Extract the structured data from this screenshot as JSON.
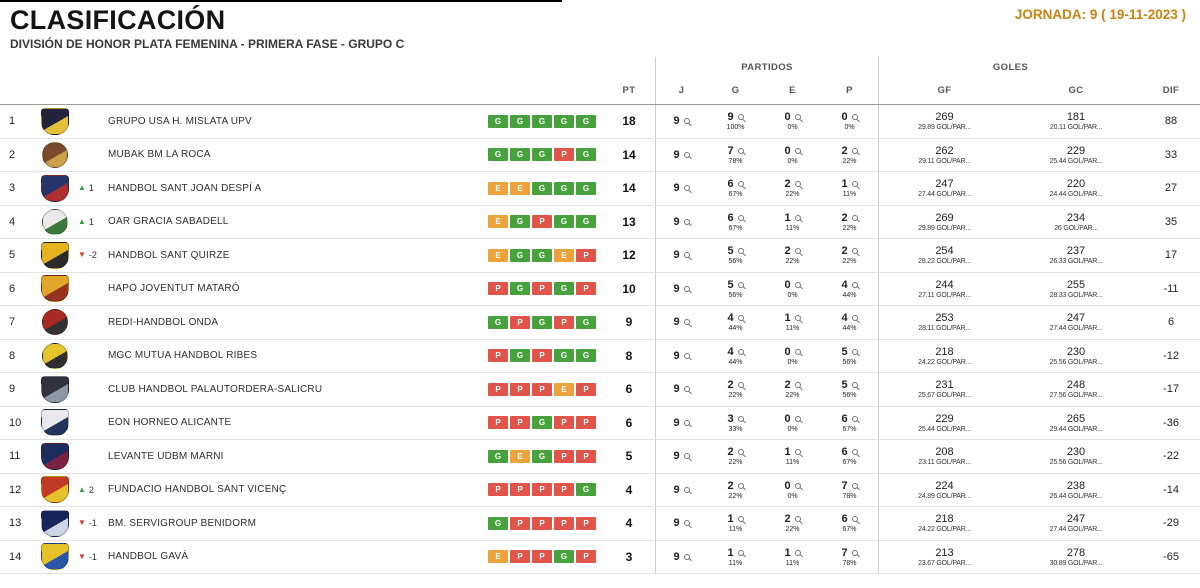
{
  "header": {
    "title": "CLASIFICACIÓN",
    "subtitle": "DIVISIÓN DE HONOR PLATA FEMENINA - PRIMERA FASE - GRUPO C",
    "jornada": "JORNADA: 9 ( 19-11-2023 )"
  },
  "table": {
    "group_headers": {
      "partidos": "PARTIDOS",
      "goles": "GOLES"
    },
    "columns": {
      "pt": "PT",
      "j": "J",
      "g": "G",
      "e": "E",
      "p": "P",
      "gf": "GF",
      "gc": "GC",
      "dif": "DIF"
    },
    "colors": {
      "win": "#47a13c",
      "draw": "#eca33b",
      "loss": "#e0544a",
      "up": "#2e9e3e",
      "down": "#d23b2e",
      "jornada": "#c8820f"
    },
    "rows": [
      {
        "pos": 1,
        "move": null,
        "team": "GRUPO USA H. MISLATA UPV",
        "logo_shape": "shield",
        "logo_colors": [
          "#23233c",
          "#e3c23a"
        ],
        "form": [
          "G",
          "G",
          "G",
          "G",
          "G"
        ],
        "pt": 18,
        "j": 9,
        "g": {
          "n": 9,
          "pct": "100%"
        },
        "e": {
          "n": 0,
          "pct": "0%"
        },
        "p": {
          "n": 0,
          "pct": "0%"
        },
        "gf": {
          "n": 269,
          "sub": "29.89 GOL/PAR..."
        },
        "gc": {
          "n": 181,
          "sub": "20.11 GOL/PAR..."
        },
        "dif": 88
      },
      {
        "pos": 2,
        "move": null,
        "team": "MUBAK BM LA ROCA",
        "logo_shape": "circle",
        "logo_colors": [
          "#7a4a2a",
          "#caa04a"
        ],
        "form": [
          "G",
          "G",
          "G",
          "P",
          "G"
        ],
        "pt": 14,
        "j": 9,
        "g": {
          "n": 7,
          "pct": "78%"
        },
        "e": {
          "n": 0,
          "pct": "0%"
        },
        "p": {
          "n": 2,
          "pct": "22%"
        },
        "gf": {
          "n": 262,
          "sub": "29.11 GOL/PAR..."
        },
        "gc": {
          "n": 229,
          "sub": "25.44 GOL/PAR..."
        },
        "dif": 33
      },
      {
        "pos": 3,
        "move": {
          "dir": "up",
          "value": "1"
        },
        "team": "HANDBOL SANT JOAN DESPÍ A",
        "logo_shape": "shield",
        "logo_colors": [
          "#27356b",
          "#b03030"
        ],
        "form": [
          "E",
          "E",
          "G",
          "G",
          "G"
        ],
        "pt": 14,
        "j": 9,
        "g": {
          "n": 6,
          "pct": "67%"
        },
        "e": {
          "n": 2,
          "pct": "22%"
        },
        "p": {
          "n": 1,
          "pct": "11%"
        },
        "gf": {
          "n": 247,
          "sub": "27.44 GOL/PAR..."
        },
        "gc": {
          "n": 220,
          "sub": "24.44 GOL/PAR..."
        },
        "dif": 27
      },
      {
        "pos": 4,
        "move": {
          "dir": "up",
          "value": "1"
        },
        "team": "OAR GRACIA SABADELL",
        "logo_shape": "circle",
        "logo_colors": [
          "#e9e9e9",
          "#3a7a3a"
        ],
        "form": [
          "E",
          "G",
          "P",
          "G",
          "G"
        ],
        "pt": 13,
        "j": 9,
        "g": {
          "n": 6,
          "pct": "67%"
        },
        "e": {
          "n": 1,
          "pct": "11%"
        },
        "p": {
          "n": 2,
          "pct": "22%"
        },
        "gf": {
          "n": 269,
          "sub": "29.89 GOL/PAR..."
        },
        "gc": {
          "n": 234,
          "sub": "26 GOL/PAR..."
        },
        "dif": 35
      },
      {
        "pos": 5,
        "move": {
          "dir": "down",
          "value": "-2"
        },
        "team": "HANDBOL SANT QUIRZE",
        "logo_shape": "shield",
        "logo_colors": [
          "#e3b320",
          "#2a2a2a"
        ],
        "form": [
          "E",
          "G",
          "G",
          "E",
          "P"
        ],
        "pt": 12,
        "j": 9,
        "g": {
          "n": 5,
          "pct": "56%"
        },
        "e": {
          "n": 2,
          "pct": "22%"
        },
        "p": {
          "n": 2,
          "pct": "22%"
        },
        "gf": {
          "n": 254,
          "sub": "28.22 GOL/PAR..."
        },
        "gc": {
          "n": 237,
          "sub": "26.33 GOL/PAR..."
        },
        "dif": 17
      },
      {
        "pos": 6,
        "move": null,
        "team": "HAPO JOVENTUT MATARÓ",
        "logo_shape": "shield",
        "logo_colors": [
          "#e2a62a",
          "#96341f"
        ],
        "form": [
          "P",
          "G",
          "P",
          "G",
          "P"
        ],
        "pt": 10,
        "j": 9,
        "g": {
          "n": 5,
          "pct": "56%"
        },
        "e": {
          "n": 0,
          "pct": "0%"
        },
        "p": {
          "n": 4,
          "pct": "44%"
        },
        "gf": {
          "n": 244,
          "sub": "27.11 GOL/PAR..."
        },
        "gc": {
          "n": 255,
          "sub": "28.33 GOL/PAR..."
        },
        "dif": -11
      },
      {
        "pos": 7,
        "move": null,
        "team": "REDI-HANDBOL ONDA",
        "logo_shape": "circle",
        "logo_colors": [
          "#a82a22",
          "#333333"
        ],
        "form": [
          "G",
          "P",
          "G",
          "P",
          "G"
        ],
        "pt": 9,
        "j": 9,
        "g": {
          "n": 4,
          "pct": "44%"
        },
        "e": {
          "n": 1,
          "pct": "11%"
        },
        "p": {
          "n": 4,
          "pct": "44%"
        },
        "gf": {
          "n": 253,
          "sub": "28.11 GOL/PAR..."
        },
        "gc": {
          "n": 247,
          "sub": "27.44 GOL/PAR..."
        },
        "dif": 6
      },
      {
        "pos": 8,
        "move": null,
        "team": "MGC MUTUA HANDBOL RIBES",
        "logo_shape": "circle",
        "logo_colors": [
          "#e5c62a",
          "#2f2f2f"
        ],
        "form": [
          "P",
          "G",
          "P",
          "G",
          "G"
        ],
        "pt": 8,
        "j": 9,
        "g": {
          "n": 4,
          "pct": "44%"
        },
        "e": {
          "n": 0,
          "pct": "0%"
        },
        "p": {
          "n": 5,
          "pct": "56%"
        },
        "gf": {
          "n": 218,
          "sub": "24.22 GOL/PAR..."
        },
        "gc": {
          "n": 230,
          "sub": "25.56 GOL/PAR..."
        },
        "dif": -12
      },
      {
        "pos": 9,
        "move": null,
        "team": "CLUB HANDBOL PALAUTORDERA-SALICRU",
        "logo_shape": "shield",
        "logo_colors": [
          "#32323f",
          "#8d99a6"
        ],
        "form": [
          "P",
          "P",
          "P",
          "E",
          "P"
        ],
        "pt": 6,
        "j": 9,
        "g": {
          "n": 2,
          "pct": "22%"
        },
        "e": {
          "n": 2,
          "pct": "22%"
        },
        "p": {
          "n": 5,
          "pct": "56%"
        },
        "gf": {
          "n": 231,
          "sub": "25.67 GOL/PAR..."
        },
        "gc": {
          "n": 248,
          "sub": "27.56 GOL/PAR..."
        },
        "dif": -17
      },
      {
        "pos": 10,
        "move": null,
        "team": "EON HORNEO ALICANTE",
        "logo_shape": "shield",
        "logo_colors": [
          "#e8e8ee",
          "#22335c"
        ],
        "form": [
          "P",
          "P",
          "G",
          "P",
          "P"
        ],
        "pt": 6,
        "j": 9,
        "g": {
          "n": 3,
          "pct": "33%"
        },
        "e": {
          "n": 0,
          "pct": "0%"
        },
        "p": {
          "n": 6,
          "pct": "67%"
        },
        "gf": {
          "n": 229,
          "sub": "25.44 GOL/PAR..."
        },
        "gc": {
          "n": 265,
          "sub": "29.44 GOL/PAR..."
        },
        "dif": -36
      },
      {
        "pos": 11,
        "move": null,
        "team": "LEVANTE UDBM MARNI",
        "logo_shape": "shield",
        "logo_colors": [
          "#1d2e5e",
          "#7c2342"
        ],
        "form": [
          "G",
          "E",
          "G",
          "P",
          "P"
        ],
        "pt": 5,
        "j": 9,
        "g": {
          "n": 2,
          "pct": "22%"
        },
        "e": {
          "n": 1,
          "pct": "11%"
        },
        "p": {
          "n": 6,
          "pct": "67%"
        },
        "gf": {
          "n": 208,
          "sub": "23.11 GOL/PAR..."
        },
        "gc": {
          "n": 230,
          "sub": "25.56 GOL/PAR..."
        },
        "dif": -22
      },
      {
        "pos": 12,
        "move": {
          "dir": "up",
          "value": "2"
        },
        "team": "FUNDACIO HANDBOL SANT VICENÇ",
        "logo_shape": "shield",
        "logo_colors": [
          "#c23a24",
          "#e5c12a"
        ],
        "form": [
          "P",
          "P",
          "P",
          "P",
          "G"
        ],
        "pt": 4,
        "j": 9,
        "g": {
          "n": 2,
          "pct": "22%"
        },
        "e": {
          "n": 0,
          "pct": "0%"
        },
        "p": {
          "n": 7,
          "pct": "78%"
        },
        "gf": {
          "n": 224,
          "sub": "24.89 GOL/PAR..."
        },
        "gc": {
          "n": 238,
          "sub": "26.44 GOL/PAR..."
        },
        "dif": -14
      },
      {
        "pos": 13,
        "move": {
          "dir": "down",
          "value": "-1"
        },
        "team": "BM. SERVIGROUP BENIDORM",
        "logo_shape": "shield",
        "logo_colors": [
          "#17255c",
          "#cdd6e6"
        ],
        "form": [
          "G",
          "P",
          "P",
          "P",
          "P"
        ],
        "pt": 4,
        "j": 9,
        "g": {
          "n": 1,
          "pct": "11%"
        },
        "e": {
          "n": 2,
          "pct": "22%"
        },
        "p": {
          "n": 6,
          "pct": "67%"
        },
        "gf": {
          "n": 218,
          "sub": "24.22 GOL/PAR..."
        },
        "gc": {
          "n": 247,
          "sub": "27.44 GOL/PAR..."
        },
        "dif": -29
      },
      {
        "pos": 14,
        "move": {
          "dir": "down",
          "value": "-1"
        },
        "team": "HANDBOL GAVÀ",
        "logo_shape": "shield",
        "logo_colors": [
          "#e5c12a",
          "#2b57a8"
        ],
        "form": [
          "E",
          "P",
          "P",
          "G",
          "P"
        ],
        "pt": 3,
        "j": 9,
        "g": {
          "n": 1,
          "pct": "11%"
        },
        "e": {
          "n": 1,
          "pct": "11%"
        },
        "p": {
          "n": 7,
          "pct": "78%"
        },
        "gf": {
          "n": 213,
          "sub": "23.67 GOL/PAR..."
        },
        "gc": {
          "n": 278,
          "sub": "30.89 GOL/PAR..."
        },
        "dif": -65
      }
    ]
  }
}
